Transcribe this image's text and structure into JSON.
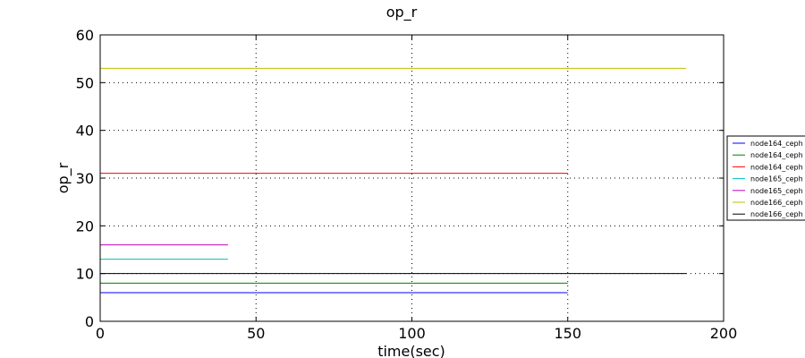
{
  "chart_data": {
    "type": "line",
    "title": "op_r",
    "xlabel": "time(sec)",
    "ylabel": "op_r",
    "xlim": [
      0,
      200
    ],
    "ylim": [
      0,
      60
    ],
    "xticks": [
      0,
      50,
      100,
      150,
      200
    ],
    "yticks": [
      0,
      10,
      20,
      30,
      40,
      50,
      60
    ],
    "grid": true,
    "legend_position": "right, outside plot",
    "series": [
      {
        "name": "node164_ceph",
        "color": "#0000ff",
        "x": [
          0,
          150
        ],
        "y": [
          6,
          6
        ]
      },
      {
        "name": "node164_ceph",
        "color": "#008000",
        "x": [
          0,
          150
        ],
        "y": [
          8,
          8
        ]
      },
      {
        "name": "node164_ceph",
        "color": "#ff0000",
        "x": [
          0,
          150
        ],
        "y": [
          31,
          31
        ]
      },
      {
        "name": "node165_ceph",
        "color": "#00bfbf",
        "x": [
          0,
          41
        ],
        "y": [
          13,
          13
        ]
      },
      {
        "name": "node165_ceph",
        "color": "#bf00bf",
        "x": [
          0,
          41
        ],
        "y": [
          16,
          16
        ]
      },
      {
        "name": "node166_ceph",
        "color": "#bfbf00",
        "x": [
          0,
          188
        ],
        "y": [
          53,
          53
        ]
      },
      {
        "name": "node166_ceph",
        "color": "#000000",
        "x": [
          0,
          188
        ],
        "y": [
          10,
          10
        ]
      }
    ]
  }
}
